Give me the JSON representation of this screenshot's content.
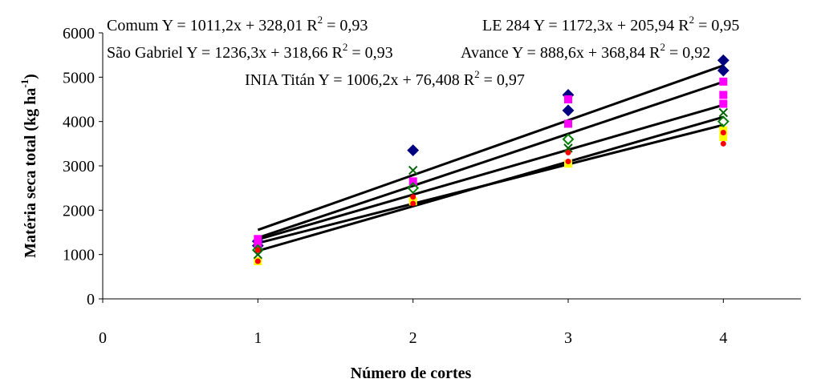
{
  "chart_data": {
    "type": "scatter",
    "xlabel": "Número de cortes",
    "ylabel": {
      "text": "Matéria seca total (kg ha",
      "sup": "-1",
      "tail": ")"
    },
    "xlim": [
      0,
      4.5
    ],
    "xticks": [
      0,
      1,
      2,
      3,
      4
    ],
    "ylim": [
      0,
      6000
    ],
    "yticks": [
      0,
      1000,
      2000,
      3000,
      4000,
      5000,
      6000
    ],
    "series": [
      {
        "color": "#000080",
        "marker": "diamond",
        "x": [
          1,
          1,
          2,
          3,
          3,
          4,
          4
        ],
        "values": [
          1300,
          1200,
          3350,
          4600,
          4250,
          5380,
          5150
        ]
      },
      {
        "color": "#ff00ff",
        "marker": "square",
        "x": [
          1,
          1,
          2,
          3,
          3,
          4,
          4,
          4
        ],
        "values": [
          1350,
          1250,
          2650,
          3950,
          4500,
          4900,
          4600,
          4400
        ]
      },
      {
        "color": "#ffff00",
        "marker": "square",
        "x": [
          1,
          2,
          3,
          4,
          4
        ],
        "values": [
          850,
          2200,
          3050,
          3650,
          3800
        ]
      },
      {
        "color": "#008000",
        "marker": "open-diamond",
        "x": [
          1,
          2,
          3,
          4
        ],
        "values": [
          1100,
          2500,
          3600,
          4000
        ]
      },
      {
        "color": "#006400",
        "marker": "x",
        "x": [
          1,
          2,
          3,
          4
        ],
        "values": [
          1000,
          2900,
          3400,
          4200
        ]
      },
      {
        "color": "#ff0000",
        "marker": "circle",
        "x": [
          1,
          1,
          2,
          2,
          3,
          3,
          4,
          4
        ],
        "values": [
          850,
          1100,
          2300,
          2150,
          3100,
          3300,
          3500,
          3750
        ]
      }
    ],
    "fits": [
      {
        "text": "Comum Y = 1011,2x + 328,01 R",
        "sup": "2",
        "tail": "= 0,93",
        "slope": 1011.2,
        "intercept": 328.01
      },
      {
        "text": "LE 284 Y = 1172,3x + 205,94 R",
        "sup": "2",
        "tail": "= 0,95",
        "slope": 1172.3,
        "intercept": 205.94
      },
      {
        "text": "São Gabriel Y = 1236,3x + 318,66 R",
        "sup": "2",
        "tail": "= 0,93",
        "slope": 1236.3,
        "intercept": 318.66
      },
      {
        "text": "Avance Y = 888,6x + 368,84 R",
        "sup": "2",
        "tail": "= 0,92",
        "slope": 888.6,
        "intercept": 368.84
      },
      {
        "text": "INIA Titán Y = 1006,2x + 76,408 R",
        "sup": "2",
        "tail": "= 0,97",
        "slope": 1006.2,
        "intercept": 76.408
      }
    ]
  }
}
